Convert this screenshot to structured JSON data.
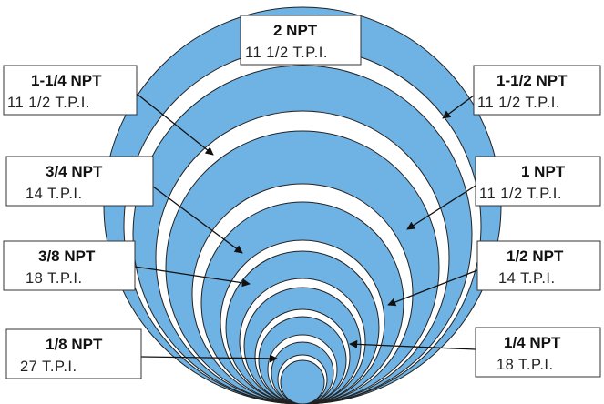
{
  "colors": {
    "ring_fill": "#6fb2e4",
    "gap_fill": "#ffffff",
    "outline": "#222222",
    "label_border": "#333333"
  },
  "labels": [
    {
      "id": "2-npt",
      "size": "2 NPT",
      "tpi": "11 1/2 T.P.I."
    },
    {
      "id": "1-1-4-npt",
      "size": "1-1/4 NPT",
      "tpi": "11 1/2 T.P.I."
    },
    {
      "id": "1-1-2-npt",
      "size": "1-1/2 NPT",
      "tpi": "11 1/2 T.P.I."
    },
    {
      "id": "3-4-npt",
      "size": "3/4 NPT",
      "tpi": "14 T.P.I."
    },
    {
      "id": "1-npt",
      "size": "1 NPT",
      "tpi": "11 1/2 T.P.I."
    },
    {
      "id": "3-8-npt",
      "size": "3/8 NPT",
      "tpi": "18 T.P.I."
    },
    {
      "id": "1-2-npt",
      "size": "1/2 NPT",
      "tpi": "14 T.P.I."
    },
    {
      "id": "1-8-npt",
      "size": "1/8 NPT",
      "tpi": "27 T.P.I."
    },
    {
      "id": "1-4-npt",
      "size": "1/4 NPT",
      "tpi": "18 T.P.I."
    }
  ]
}
